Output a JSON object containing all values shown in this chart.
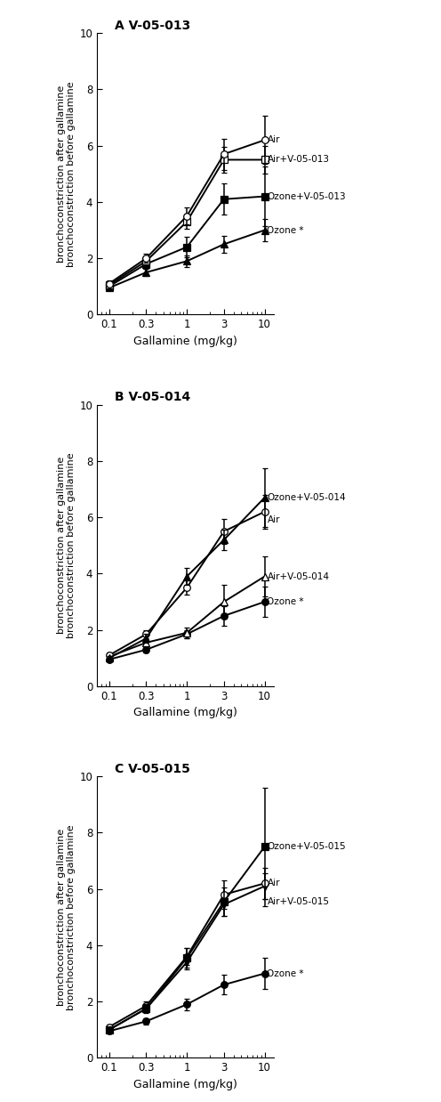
{
  "x": [
    0.1,
    0.3,
    1.0,
    3.0,
    10.0
  ],
  "panels": [
    {
      "title": "A V-05-013",
      "series": [
        {
          "label": "Air",
          "marker": "o",
          "fillstyle": "none",
          "color": "black",
          "y": [
            1.1,
            2.0,
            3.5,
            5.7,
            6.2
          ],
          "yerr": [
            0.1,
            0.15,
            0.3,
            0.55,
            0.85
          ]
        },
        {
          "label": "Air+V-05-013",
          "marker": "s",
          "fillstyle": "none",
          "color": "black",
          "y": [
            1.05,
            1.9,
            3.3,
            5.5,
            5.5
          ],
          "yerr": [
            0.08,
            0.12,
            0.25,
            0.45,
            0.5
          ]
        },
        {
          "label": "Ozone+V-05-013",
          "marker": "s",
          "fillstyle": "full",
          "color": "black",
          "y": [
            1.0,
            1.8,
            2.4,
            4.1,
            4.2
          ],
          "yerr": [
            0.08,
            0.18,
            0.35,
            0.55,
            1.05
          ]
        },
        {
          "label": "Ozone *",
          "marker": "^",
          "fillstyle": "full",
          "color": "black",
          "y": [
            0.95,
            1.5,
            1.9,
            2.5,
            3.0
          ],
          "yerr": [
            0.07,
            0.12,
            0.2,
            0.3,
            0.4
          ]
        }
      ]
    },
    {
      "title": "B V-05-014",
      "series": [
        {
          "label": "Ozone+V-05-014",
          "marker": "^",
          "fillstyle": "full",
          "color": "black",
          "y": [
            1.0,
            1.7,
            3.9,
            5.2,
            6.7
          ],
          "yerr": [
            0.07,
            0.15,
            0.3,
            0.35,
            1.05
          ]
        },
        {
          "label": "Air",
          "marker": "o",
          "fillstyle": "none",
          "color": "black",
          "y": [
            1.1,
            1.85,
            3.5,
            5.5,
            6.2
          ],
          "yerr": [
            0.1,
            0.15,
            0.25,
            0.45,
            0.6
          ]
        },
        {
          "label": "Air+V-05-014",
          "marker": "^",
          "fillstyle": "none",
          "color": "black",
          "y": [
            1.05,
            1.55,
            1.9,
            3.0,
            3.9
          ],
          "yerr": [
            0.08,
            0.12,
            0.2,
            0.6,
            0.7
          ]
        },
        {
          "label": "Ozone *",
          "marker": "o",
          "fillstyle": "full",
          "color": "black",
          "y": [
            0.95,
            1.3,
            1.85,
            2.5,
            3.0
          ],
          "yerr": [
            0.07,
            0.1,
            0.15,
            0.35,
            0.55
          ]
        }
      ]
    },
    {
      "title": "C V-05-015",
      "series": [
        {
          "label": "Ozone+V-05-015",
          "marker": "s",
          "fillstyle": "full",
          "color": "black",
          "y": [
            1.0,
            1.75,
            3.55,
            5.55,
            7.5
          ],
          "yerr": [
            0.07,
            0.15,
            0.35,
            0.5,
            2.1
          ]
        },
        {
          "label": "Air",
          "marker": "o",
          "fillstyle": "none",
          "color": "black",
          "y": [
            1.1,
            1.85,
            3.6,
            5.8,
            6.2
          ],
          "yerr": [
            0.1,
            0.15,
            0.3,
            0.5,
            0.55
          ]
        },
        {
          "label": "Air+V-05-015",
          "marker": "v",
          "fillstyle": "full",
          "color": "black",
          "y": [
            1.0,
            1.75,
            3.4,
            5.45,
            6.1
          ],
          "yerr": [
            0.07,
            0.12,
            0.25,
            0.4,
            0.45
          ]
        },
        {
          "label": "Ozone *",
          "marker": "o",
          "fillstyle": "full",
          "color": "black",
          "y": [
            0.95,
            1.3,
            1.9,
            2.6,
            3.0
          ],
          "yerr": [
            0.07,
            0.1,
            0.2,
            0.35,
            0.55
          ]
        }
      ]
    }
  ],
  "xlim": [
    0.07,
    13.0
  ],
  "ylim": [
    0,
    10
  ],
  "yticks": [
    0,
    2,
    4,
    6,
    8,
    10
  ],
  "xticks": [
    0.1,
    0.3,
    1.0,
    3.0,
    10.0
  ],
  "xtick_labels": [
    "0.1",
    "0.3",
    "1",
    "3",
    "10"
  ],
  "xlabel": "Gallamine (mg/kg)",
  "ylabel": "bronchoconstriction after gallamine\nbronchoconstriction before gallamine",
  "background_color": "#ffffff",
  "line_color": "black",
  "ms": 5.5,
  "lw": 1.4,
  "capsize": 2.5,
  "elinewidth": 1.1,
  "label_fontsize": 7.5,
  "title_fontsize": 10,
  "ylabel_fontsize": 8,
  "xlabel_fontsize": 9
}
